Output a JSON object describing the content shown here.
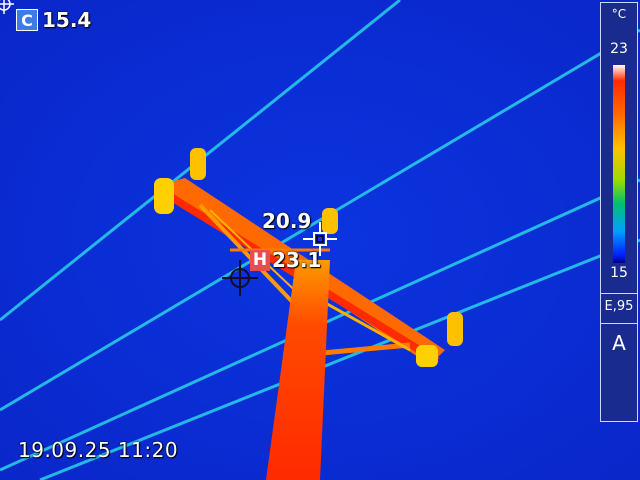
{
  "readouts": {
    "center": {
      "badge": "C",
      "value": "15.4"
    },
    "spot": {
      "value": "20.9"
    },
    "hot": {
      "badge": "H",
      "value": "23.1"
    }
  },
  "timestamp": "19.09.25 11:20",
  "scale": {
    "unit": "°C",
    "max": "23",
    "min": "15",
    "emissivity": "E,95",
    "mode": "A",
    "palette": [
      "#ffffff",
      "#ff2a00",
      "#ff6a00",
      "#ffc000",
      "#9cdc00",
      "#00c070",
      "#00a0ff",
      "#0020ff",
      "#000088"
    ]
  },
  "colors": {
    "background": "#0a2bd6",
    "hot_badge": "#e94d4d",
    "center_badge": "#3e7be8",
    "wire": "#27c9e8"
  },
  "icons": [
    "crosshair-icon",
    "spot-crosshair-icon",
    "cold-spot-crosshair-icon"
  ]
}
